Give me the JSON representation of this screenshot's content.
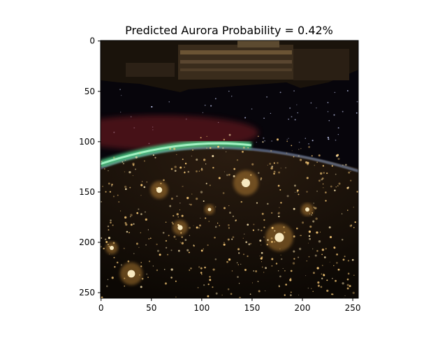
{
  "chart_data": {
    "type": "image",
    "title": "Predicted Aurora Probability = 0.42%",
    "xlabel": "",
    "ylabel": "",
    "xlim": [
      -0.5,
      255.5
    ],
    "ylim": [
      255.5,
      -0.5
    ],
    "x_ticks": [
      0,
      50,
      100,
      150,
      200,
      250
    ],
    "y_ticks": [
      0,
      50,
      100,
      150,
      200,
      250
    ],
    "image": {
      "description_free": true,
      "colors": {
        "space": "#07050b",
        "aurora_green": "#4fd68a",
        "aurora_red": "#6a1a22",
        "city_light": "#ffcf7a",
        "ground": "#1a120a",
        "station": "#4a3a28"
      }
    }
  }
}
